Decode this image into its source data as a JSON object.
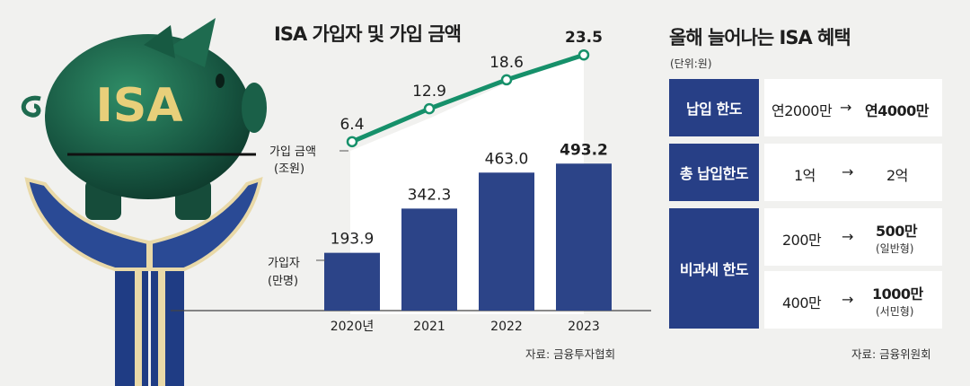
{
  "chart_data": {
    "type": "bar",
    "title": "ISA 가입자 및 가입 금액",
    "categories": [
      "2020년",
      "2021",
      "2022",
      "2023"
    ],
    "series": [
      {
        "name": "가입자",
        "unit": "(만명)",
        "type": "bar",
        "values": [
          193.9,
          342.3,
          463.0,
          493.2
        ],
        "labels": [
          "193.9",
          "342.3",
          "463.0",
          "493.2"
        ]
      },
      {
        "name": "가입 금액",
        "unit": "(조원)",
        "type": "line",
        "values": [
          6.4,
          12.9,
          18.6,
          23.5
        ],
        "labels": [
          "6.4",
          "12.9",
          "18.6",
          "23.5"
        ]
      }
    ],
    "source": "자료: 금융투자협회",
    "colors": {
      "bar": "#2c4488",
      "line": "#16906a"
    }
  },
  "illustration": {
    "label": "ISA"
  },
  "benefits": {
    "title": "올해 늘어나는 ISA 혜택",
    "unit": "(단위:원)",
    "arrow": "→",
    "rows": [
      {
        "label": "납입 한도",
        "cells": [
          {
            "from": "연2000만",
            "to": "연4000만"
          }
        ]
      },
      {
        "label": "총 납입한도",
        "cells": [
          {
            "from": "1억",
            "to": "2억"
          }
        ]
      },
      {
        "label": "비과세 한도",
        "cells": [
          {
            "from": "200만",
            "to": "500만",
            "note": "(일반형)"
          },
          {
            "from": "400만",
            "to": "1000만",
            "note": "(서민형)"
          }
        ]
      }
    ],
    "source": "자료: 금융위원회"
  }
}
